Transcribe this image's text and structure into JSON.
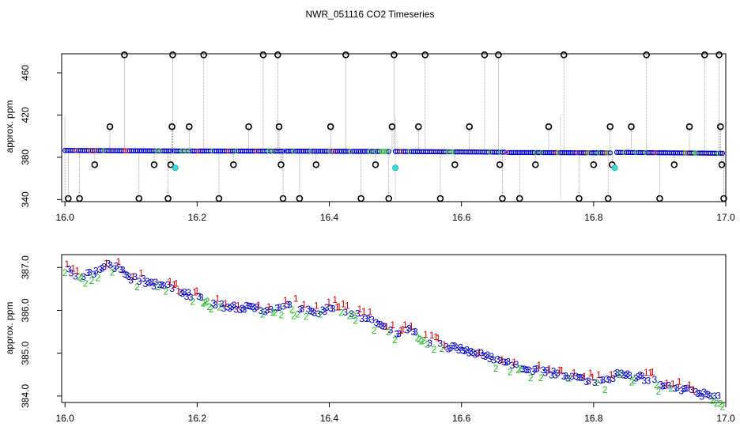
{
  "chart_data": [
    {
      "type": "scatter",
      "title": "NWR_051116  CO2 Timeseries",
      "xlabel": "",
      "ylabel": "approx. ppm",
      "xlim": [
        15.995,
        17.0
      ],
      "ylim": [
        338,
        478
      ],
      "xticks": [
        16.0,
        16.2,
        16.4,
        16.6,
        16.8,
        17.0
      ],
      "xtick_labels": [
        "16.0",
        "16.2",
        "16.4",
        "16.6",
        "16.8",
        "17.0"
      ],
      "yticks": [
        340,
        380,
        420,
        460
      ],
      "ytick_labels": [
        "340",
        "380",
        "420",
        "460"
      ],
      "baseline_segments": [
        {
          "x": [
            16.0,
            16.16
          ],
          "y": [
            386.5,
            386.0
          ]
        },
        {
          "x": [
            16.165,
            16.33
          ],
          "y": [
            386.0,
            385.8
          ]
        },
        {
          "x": [
            16.335,
            16.49
          ],
          "y": [
            385.8,
            385.5
          ]
        },
        {
          "x": [
            16.5,
            16.665
          ],
          "y": [
            385.5,
            384.8
          ]
        },
        {
          "x": [
            16.67,
            16.825
          ],
          "y": [
            384.5,
            384.2
          ]
        },
        {
          "x": [
            16.835,
            16.995
          ],
          "y": [
            384.6,
            383.8
          ]
        }
      ],
      "spikes": [
        {
          "x": 16.005,
          "y": 341
        },
        {
          "x": 16.022,
          "y": 341
        },
        {
          "x": 16.045,
          "y": 373
        },
        {
          "x": 16.068,
          "y": 409
        },
        {
          "x": 16.09,
          "y": 477
        },
        {
          "x": 16.112,
          "y": 341
        },
        {
          "x": 16.135,
          "y": 373
        },
        {
          "x": 16.156,
          "y": 341
        },
        {
          "x": 16.162,
          "y": 409
        },
        {
          "x": 16.163,
          "y": 477
        },
        {
          "x": 16.16,
          "y": 373
        },
        {
          "x": 16.188,
          "y": 409
        },
        {
          "x": 16.21,
          "y": 477
        },
        {
          "x": 16.233,
          "y": 341
        },
        {
          "x": 16.255,
          "y": 373
        },
        {
          "x": 16.278,
          "y": 409
        },
        {
          "x": 16.3,
          "y": 477
        },
        {
          "x": 16.322,
          "y": 477
        },
        {
          "x": 16.324,
          "y": 409
        },
        {
          "x": 16.327,
          "y": 373
        },
        {
          "x": 16.33,
          "y": 341
        },
        {
          "x": 16.355,
          "y": 341
        },
        {
          "x": 16.38,
          "y": 373
        },
        {
          "x": 16.402,
          "y": 409
        },
        {
          "x": 16.425,
          "y": 477
        },
        {
          "x": 16.448,
          "y": 341
        },
        {
          "x": 16.47,
          "y": 373
        },
        {
          "x": 16.49,
          "y": 341
        },
        {
          "x": 16.495,
          "y": 409
        },
        {
          "x": 16.498,
          "y": 477
        },
        {
          "x": 16.535,
          "y": 409
        },
        {
          "x": 16.545,
          "y": 477
        },
        {
          "x": 16.568,
          "y": 341
        },
        {
          "x": 16.59,
          "y": 373
        },
        {
          "x": 16.612,
          "y": 409
        },
        {
          "x": 16.635,
          "y": 477
        },
        {
          "x": 16.656,
          "y": 477
        },
        {
          "x": 16.658,
          "y": 373
        },
        {
          "x": 16.662,
          "y": 341
        },
        {
          "x": 16.688,
          "y": 341
        },
        {
          "x": 16.712,
          "y": 373
        },
        {
          "x": 16.732,
          "y": 409
        },
        {
          "x": 16.755,
          "y": 477
        },
        {
          "x": 16.778,
          "y": 341
        },
        {
          "x": 16.8,
          "y": 373
        },
        {
          "x": 16.822,
          "y": 341
        },
        {
          "x": 16.825,
          "y": 409
        },
        {
          "x": 16.828,
          "y": 373
        },
        {
          "x": 16.857,
          "y": 409
        },
        {
          "x": 16.88,
          "y": 477
        },
        {
          "x": 16.9,
          "y": 341
        },
        {
          "x": 16.922,
          "y": 373
        },
        {
          "x": 16.945,
          "y": 409
        },
        {
          "x": 16.968,
          "y": 477
        },
        {
          "x": 16.99,
          "y": 477
        },
        {
          "x": 16.992,
          "y": 409
        },
        {
          "x": 16.994,
          "y": 373
        },
        {
          "x": 16.997,
          "y": 341
        }
      ],
      "cyan_points": [
        {
          "x": 16.167,
          "y": 370
        },
        {
          "x": 16.5,
          "y": 370
        },
        {
          "x": 16.832,
          "y": 370
        }
      ]
    },
    {
      "type": "scatter",
      "title": "",
      "xlabel": "",
      "ylabel": "approx. ppm",
      "xlim": [
        15.995,
        17.0
      ],
      "ylim": [
        383.85,
        387.3
      ],
      "xticks": [
        16.0,
        16.2,
        16.4,
        16.6,
        16.8,
        17.0
      ],
      "xtick_labels": [
        "16.0",
        "16.2",
        "16.4",
        "16.6",
        "16.8",
        "17.0"
      ],
      "yticks": [
        384.0,
        385.0,
        386.0,
        387.0
      ],
      "ytick_labels": [
        "384.0",
        "385.0",
        "386.0",
        "387.0"
      ],
      "trend": [
        [
          16.0,
          387.0
        ],
        [
          16.02,
          386.8
        ],
        [
          16.04,
          386.85
        ],
        [
          16.06,
          387.05
        ],
        [
          16.08,
          387.0
        ],
        [
          16.1,
          386.75
        ],
        [
          16.14,
          386.6
        ],
        [
          16.16,
          386.55
        ],
        [
          16.17,
          386.4
        ],
        [
          16.2,
          386.35
        ],
        [
          16.24,
          386.1
        ],
        [
          16.28,
          386.05
        ],
        [
          16.32,
          386.0
        ],
        [
          16.33,
          386.1
        ],
        [
          16.36,
          386.05
        ],
        [
          16.38,
          385.95
        ],
        [
          16.41,
          386.05
        ],
        [
          16.44,
          385.9
        ],
        [
          16.48,
          385.65
        ],
        [
          16.5,
          385.45
        ],
        [
          16.53,
          385.55
        ],
        [
          16.56,
          385.2
        ],
        [
          16.6,
          385.1
        ],
        [
          16.64,
          384.9
        ],
        [
          16.66,
          384.8
        ],
        [
          16.7,
          384.65
        ],
        [
          16.75,
          384.5
        ],
        [
          16.8,
          384.35
        ],
        [
          16.82,
          384.35
        ],
        [
          16.84,
          384.55
        ],
        [
          16.88,
          384.4
        ],
        [
          16.92,
          384.2
        ],
        [
          16.95,
          384.1
        ],
        [
          16.99,
          383.95
        ]
      ],
      "series": [
        {
          "name": "1",
          "color": "#dd0000"
        },
        {
          "name": "2",
          "color": "#22bb22"
        },
        {
          "name": "3",
          "color": "#0000cc"
        }
      ]
    }
  ]
}
